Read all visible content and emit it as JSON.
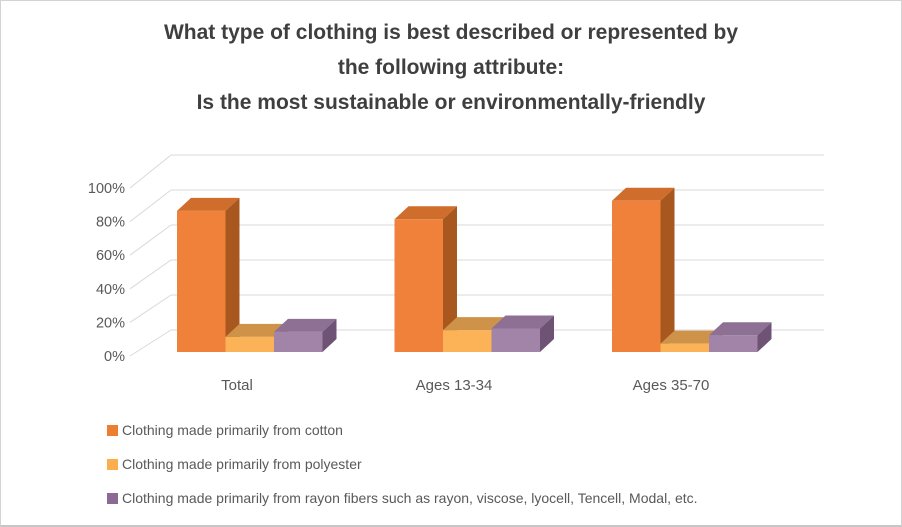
{
  "title_lines": [
    "What type of clothing is best described or represented by",
    "the following attribute:",
    "Is the most sustainable or environmentally-friendly"
  ],
  "chart_data": {
    "type": "bar",
    "subtype": "3d-clustered-column",
    "title": "What type of clothing is best described or represented by the following attribute: Is the most sustainable or environmentally-friendly",
    "categories": [
      "Total",
      "Ages 13-34",
      "Ages 35-70"
    ],
    "series": [
      {
        "name": "Clothing made primarily from cotton",
        "key": "cotton",
        "values": [
          84,
          79,
          90
        ],
        "color": "#ED7D31",
        "color_front": "#F0813B",
        "color_top": "#CF6E2C",
        "color_side": "#A8571F"
      },
      {
        "name": "Clothing made primarily from polyester",
        "key": "polyester",
        "values": [
          9,
          13,
          5
        ],
        "color": "#FBAE4E",
        "color_front": "#FCB257",
        "color_top": "#CE9349",
        "color_side": "#AA7A39"
      },
      {
        "name": "Clothing made primarily from rayon fibers such as rayon, viscose, lyocell, Tencell, Modal, etc.",
        "key": "rayon",
        "values": [
          12,
          14,
          10
        ],
        "color": "#8D6A96",
        "color_front": "#A184A8",
        "color_top": "#8E7095",
        "color_side": "#6F5375"
      }
    ],
    "xlabel": "",
    "ylabel": "",
    "ylim": [
      0,
      100
    ],
    "ytick_step": 20,
    "ytick_labels": [
      "0%",
      "20%",
      "40%",
      "60%",
      "80%",
      "100%"
    ],
    "grid": true,
    "legend_position": "bottom",
    "gridline_color": "#D9D9D9",
    "axis_text_color": "#595959",
    "title_color": "#3F3F3F"
  }
}
